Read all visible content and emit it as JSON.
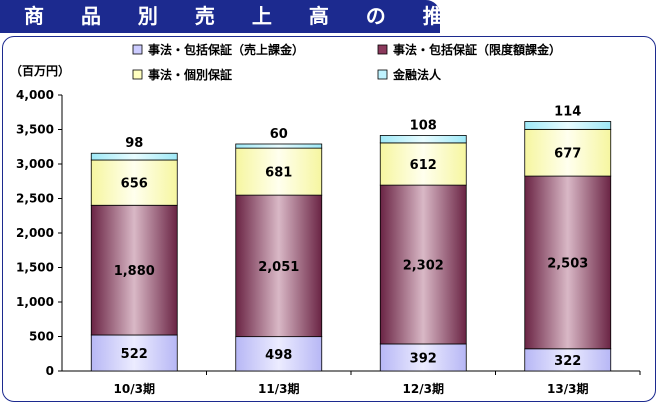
{
  "title": "商 品 別 売 上 高 の 推 移",
  "chart_data": {
    "type": "bar",
    "stacked": true,
    "unit_label": "（百万円）",
    "categories": [
      "10/3期",
      "11/3期",
      "12/3期",
      "13/3期"
    ],
    "ylim": [
      0,
      4000
    ],
    "yticks": [
      "0",
      "500",
      "1,000",
      "1,500",
      "2,000",
      "2,500",
      "3,000",
      "3,500",
      "4,000"
    ],
    "ytick_values": [
      0,
      500,
      1000,
      1500,
      2000,
      2500,
      3000,
      3500,
      4000
    ],
    "series": [
      {
        "name": "事法・包括保証（売上課金）",
        "values": [
          522,
          498,
          392,
          322
        ],
        "labels": [
          "522",
          "498",
          "392",
          "322"
        ],
        "color": "#ccccff"
      },
      {
        "name": "事法・包括保証（限度額課金）",
        "values": [
          1880,
          2051,
          2302,
          2503
        ],
        "labels": [
          "1,880",
          "2,051",
          "2,302",
          "2,503"
        ],
        "color": "#8b3a5c"
      },
      {
        "name": "事法・個別保証",
        "values": [
          656,
          681,
          612,
          677
        ],
        "labels": [
          "656",
          "681",
          "612",
          "677"
        ],
        "color": "#ffffc0"
      },
      {
        "name": "金融法人",
        "values": [
          98,
          60,
          108,
          114
        ],
        "labels": [
          "98",
          "60",
          "108",
          "114"
        ],
        "color": "#bff3ff"
      }
    ],
    "legend_order": [
      0,
      1,
      2,
      3
    ],
    "grid": false
  }
}
